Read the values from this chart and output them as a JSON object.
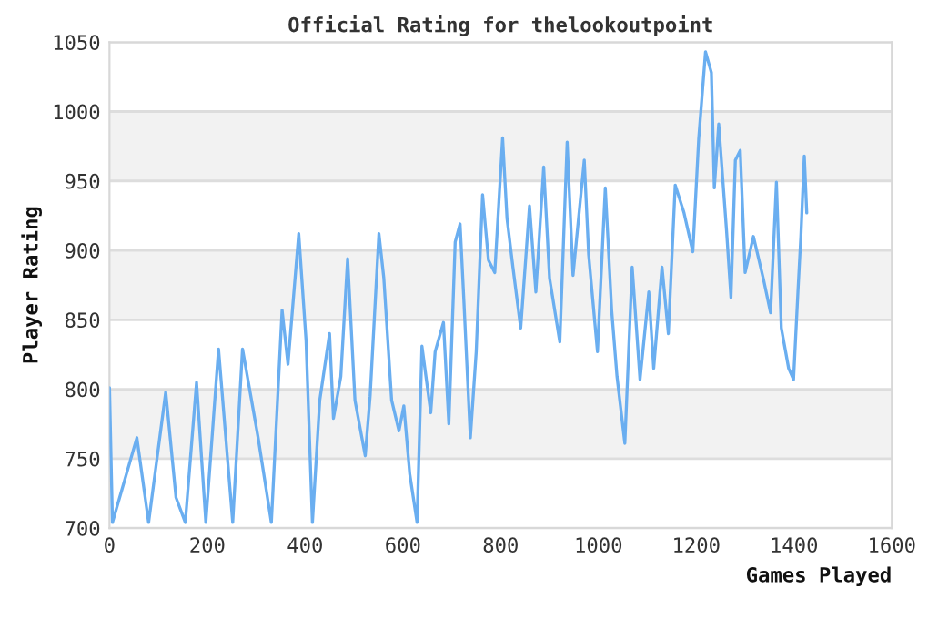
{
  "chart_data": {
    "type": "line",
    "title": "Official Rating for thelookoutpoint",
    "xlabel": "Games Played",
    "ylabel": "Player Rating",
    "x": [
      0,
      6,
      56,
      80,
      115,
      136,
      155,
      178,
      197,
      223,
      252,
      272,
      304,
      331,
      353,
      365,
      387,
      402,
      415,
      430,
      450,
      458,
      473,
      487,
      502,
      523,
      533,
      551,
      561,
      577,
      592,
      602,
      614,
      629,
      639,
      657,
      666,
      683,
      694,
      707,
      717,
      725,
      738,
      750,
      763,
      775,
      788,
      804,
      813,
      825,
      841,
      859,
      872,
      888,
      900,
      921,
      936,
      948,
      971,
      980,
      998,
      1014,
      1027,
      1038,
      1054,
      1069,
      1085,
      1103,
      1113,
      1130,
      1143,
      1157,
      1175,
      1193,
      1205,
      1219,
      1231,
      1237,
      1246,
      1262,
      1271,
      1280,
      1290,
      1300,
      1317,
      1337,
      1352,
      1364,
      1374,
      1389,
      1399,
      1408,
      1414,
      1421,
      1426
    ],
    "series": [
      {
        "color": "#6aaef0",
        "values": [
          801,
          704,
          765,
          704,
          798,
          722,
          704,
          805,
          704,
          829,
          704,
          829,
          765,
          704,
          857,
          818,
          912,
          835,
          704,
          792,
          840,
          779,
          809,
          894,
          792,
          752,
          795,
          912,
          880,
          792,
          770,
          788,
          739,
          704,
          831,
          783,
          827,
          848,
          775,
          906,
          919,
          862,
          765,
          827,
          940,
          893,
          884,
          981,
          923,
          888,
          844,
          932,
          870,
          960,
          880,
          834,
          978,
          882,
          965,
          897,
          827,
          945,
          857,
          809,
          761,
          888,
          807,
          870,
          815,
          888,
          840,
          947,
          927,
          899,
          980,
          1043,
          1028,
          945,
          991,
          914,
          866,
          965,
          972,
          884,
          910,
          880,
          855,
          949,
          844,
          815,
          807,
          870,
          910,
          968,
          927
        ]
      }
    ],
    "xlim": [
      0,
      1600
    ],
    "xticks": [
      0,
      200,
      400,
      600,
      800,
      1000,
      1200,
      1400,
      1600
    ],
    "ylim": [
      700,
      1050
    ],
    "yticks": [
      700,
      750,
      800,
      850,
      900,
      950,
      1000,
      1050
    ],
    "grid": "y",
    "line_style": "solid",
    "marker": "none",
    "bands": [
      {
        "axis": "y",
        "from": 750,
        "to": 800,
        "color": "#f2f2f2"
      },
      {
        "axis": "y",
        "from": 850,
        "to": 900,
        "color": "#f2f2f2"
      },
      {
        "axis": "y",
        "from": 950,
        "to": 1000,
        "color": "#f2f2f2"
      }
    ]
  }
}
